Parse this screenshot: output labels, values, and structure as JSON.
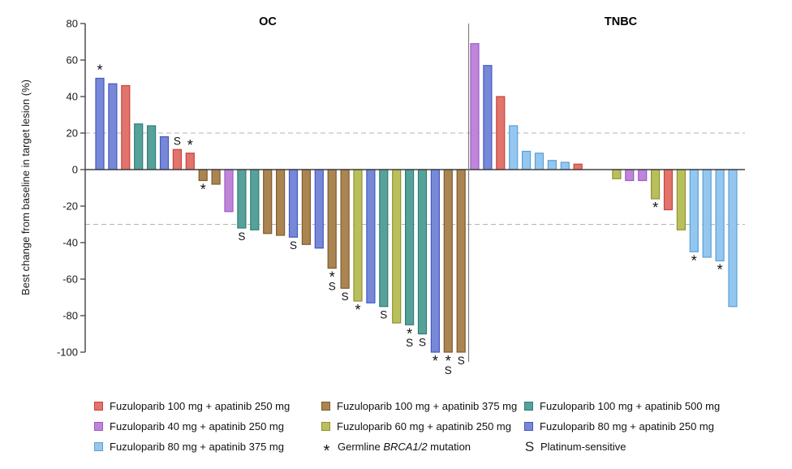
{
  "chart_data": {
    "type": "bar",
    "subtype": "waterfall",
    "title": "",
    "ylabel": "Best change from baseline in target lesion (%)",
    "ylim": [
      -100,
      80
    ],
    "yticks": [
      80,
      60,
      40,
      20,
      0,
      -20,
      -40,
      -60,
      -80,
      -100
    ],
    "reference_lines": [
      20,
      -30
    ],
    "grid": "horizontal dashed reference lines at +20 and -30 only",
    "legend_position": "bottom",
    "annotation_legend": {
      "asterisk": "Germline BRCA1/2 mutation",
      "S": "Platinum-sensitive"
    },
    "colors": {
      "red": {
        "fill": "#e1746c",
        "stroke": "#c9443b",
        "label": "Fuzuloparib 100 mg + apatinib 250 mg"
      },
      "brown": {
        "fill": "#ab8551",
        "stroke": "#7e5b2f",
        "label": "Fuzuloparib 100 mg + apatinib 375 mg"
      },
      "teal": {
        "fill": "#56a29a",
        "stroke": "#2f7e76",
        "label": "Fuzuloparib 100 mg + apatinib 500 mg"
      },
      "purple": {
        "fill": "#bd86d9",
        "stroke": "#a158cb",
        "label": "Fuzuloparib 40 mg + apatinib 250 mg"
      },
      "olive": {
        "fill": "#babf5d",
        "stroke": "#8e932f",
        "label": "Fuzuloparib 60 mg + apatinib 250 mg"
      },
      "periwinkle": {
        "fill": "#7788d7",
        "stroke": "#4457c5",
        "label": "Fuzuloparib 80 mg + apatinib 250 mg"
      },
      "sky": {
        "fill": "#94c7ef",
        "stroke": "#5a9fd7",
        "label": "Fuzuloparib 80 mg + apatinib 375 mg"
      }
    },
    "panels": [
      {
        "title": "OC",
        "bars": [
          {
            "slot": 0,
            "value": 50,
            "color": "periwinkle",
            "marks": [
              "*"
            ]
          },
          {
            "slot": 1,
            "value": 47,
            "color": "periwinkle",
            "marks": []
          },
          {
            "slot": 2,
            "value": 46,
            "color": "red",
            "marks": []
          },
          {
            "slot": 3,
            "value": 25,
            "color": "teal",
            "marks": []
          },
          {
            "slot": 4,
            "value": 24,
            "color": "teal",
            "marks": []
          },
          {
            "slot": 5,
            "value": 18,
            "color": "periwinkle",
            "marks": []
          },
          {
            "slot": 6,
            "value": 11,
            "color": "red",
            "marks": [
              "S"
            ]
          },
          {
            "slot": 7,
            "value": 9,
            "color": "red",
            "marks": [
              "*"
            ]
          },
          {
            "slot": 8,
            "value": -6,
            "color": "brown",
            "marks": [
              "*"
            ]
          },
          {
            "slot": 9,
            "value": -8,
            "color": "brown",
            "marks": []
          },
          {
            "slot": 10,
            "value": -23,
            "color": "purple",
            "marks": []
          },
          {
            "slot": 11,
            "value": -32,
            "color": "teal",
            "marks": [
              "S"
            ]
          },
          {
            "slot": 12,
            "value": -33,
            "color": "teal",
            "marks": []
          },
          {
            "slot": 13,
            "value": -35,
            "color": "brown",
            "marks": []
          },
          {
            "slot": 14,
            "value": -36,
            "color": "brown",
            "marks": []
          },
          {
            "slot": 15,
            "value": -37,
            "color": "periwinkle",
            "marks": [
              "S"
            ]
          },
          {
            "slot": 16,
            "value": -41,
            "color": "brown",
            "marks": []
          },
          {
            "slot": 17,
            "value": -43,
            "color": "periwinkle",
            "marks": []
          },
          {
            "slot": 18,
            "value": -54,
            "color": "brown",
            "marks": [
              "*",
              "S"
            ]
          },
          {
            "slot": 19,
            "value": -65,
            "color": "brown",
            "marks": [
              "S"
            ]
          },
          {
            "slot": 20,
            "value": -72,
            "color": "olive",
            "marks": [
              "*"
            ]
          },
          {
            "slot": 21,
            "value": -73,
            "color": "periwinkle",
            "marks": []
          },
          {
            "slot": 22,
            "value": -75,
            "color": "teal",
            "marks": [
              "S"
            ]
          },
          {
            "slot": 23,
            "value": -84,
            "color": "olive",
            "marks": []
          },
          {
            "slot": 24,
            "value": -85,
            "color": "teal",
            "marks": [
              "*",
              "S"
            ]
          },
          {
            "slot": 25,
            "value": -90,
            "color": "teal",
            "marks": [
              "S"
            ]
          },
          {
            "slot": 26,
            "value": -100,
            "color": "periwinkle",
            "marks": [
              "*"
            ]
          },
          {
            "slot": 27,
            "value": -100,
            "color": "brown",
            "marks": [
              "*",
              "S"
            ]
          },
          {
            "slot": 28,
            "value": -100,
            "color": "brown",
            "marks": [
              "S"
            ]
          }
        ]
      },
      {
        "title": "TNBC",
        "bars": [
          {
            "slot": 0,
            "value": 69,
            "color": "purple",
            "marks": []
          },
          {
            "slot": 1,
            "value": 57,
            "color": "periwinkle",
            "marks": []
          },
          {
            "slot": 2,
            "value": 40,
            "color": "red",
            "marks": []
          },
          {
            "slot": 3,
            "value": 24,
            "color": "sky",
            "marks": []
          },
          {
            "slot": 4,
            "value": 10,
            "color": "sky",
            "marks": []
          },
          {
            "slot": 5,
            "value": 9,
            "color": "sky",
            "marks": []
          },
          {
            "slot": 6,
            "value": 5,
            "color": "sky",
            "marks": []
          },
          {
            "slot": 7,
            "value": 4,
            "color": "sky",
            "marks": []
          },
          {
            "slot": 8,
            "value": 3,
            "color": "red",
            "marks": []
          },
          {
            "slot": 11,
            "value": -5,
            "color": "olive",
            "marks": []
          },
          {
            "slot": 12,
            "value": -6,
            "color": "purple",
            "marks": []
          },
          {
            "slot": 13,
            "value": -6,
            "color": "purple",
            "marks": []
          },
          {
            "slot": 14,
            "value": -16,
            "color": "olive",
            "marks": [
              "*"
            ]
          },
          {
            "slot": 15,
            "value": -22,
            "color": "red",
            "marks": []
          },
          {
            "slot": 16,
            "value": -33,
            "color": "olive",
            "marks": []
          },
          {
            "slot": 17,
            "value": -45,
            "color": "sky",
            "marks": [
              "*"
            ]
          },
          {
            "slot": 18,
            "value": -48,
            "color": "sky",
            "marks": []
          },
          {
            "slot": 19,
            "value": -50,
            "color": "sky",
            "marks": [
              "*"
            ]
          },
          {
            "slot": 20,
            "value": -75,
            "color": "sky",
            "marks": []
          }
        ]
      }
    ]
  },
  "legend": {
    "rows": [
      [
        {
          "marker": "swatch",
          "color": "red",
          "parts": [
            {
              "text": "Fuzuloparib 100 mg + apatinib 250 mg"
            }
          ]
        },
        {
          "marker": "swatch",
          "color": "brown",
          "parts": [
            {
              "text": "Fuzuloparib 100 mg + apatinib 375 mg"
            }
          ]
        },
        {
          "marker": "swatch",
          "color": "teal",
          "parts": [
            {
              "text": "Fuzuloparib 100 mg + apatinib 500 mg"
            }
          ]
        }
      ],
      [
        {
          "marker": "swatch",
          "color": "purple",
          "parts": [
            {
              "text": "Fuzuloparib 40 mg + apatinib 250 mg"
            }
          ]
        },
        {
          "marker": "swatch",
          "color": "olive",
          "parts": [
            {
              "text": "Fuzuloparib 60 mg + apatinib 250 mg"
            }
          ]
        },
        {
          "marker": "swatch",
          "color": "periwinkle",
          "parts": [
            {
              "text": "Fuzuloparib 80 mg + apatinib 250 mg"
            }
          ]
        }
      ],
      [
        {
          "marker": "swatch",
          "color": "sky",
          "parts": [
            {
              "text": "Fuzuloparib 80 mg + apatinib 375 mg"
            }
          ]
        },
        {
          "marker": "asterisk",
          "symbol": "*",
          "parts": [
            {
              "text": "Germline "
            },
            {
              "text": "BRCA1/2",
              "italic": true
            },
            {
              "text": " mutation"
            }
          ]
        },
        {
          "marker": "letter",
          "symbol": "S",
          "parts": [
            {
              "text": "Platinum-sensitive"
            }
          ]
        }
      ]
    ]
  }
}
